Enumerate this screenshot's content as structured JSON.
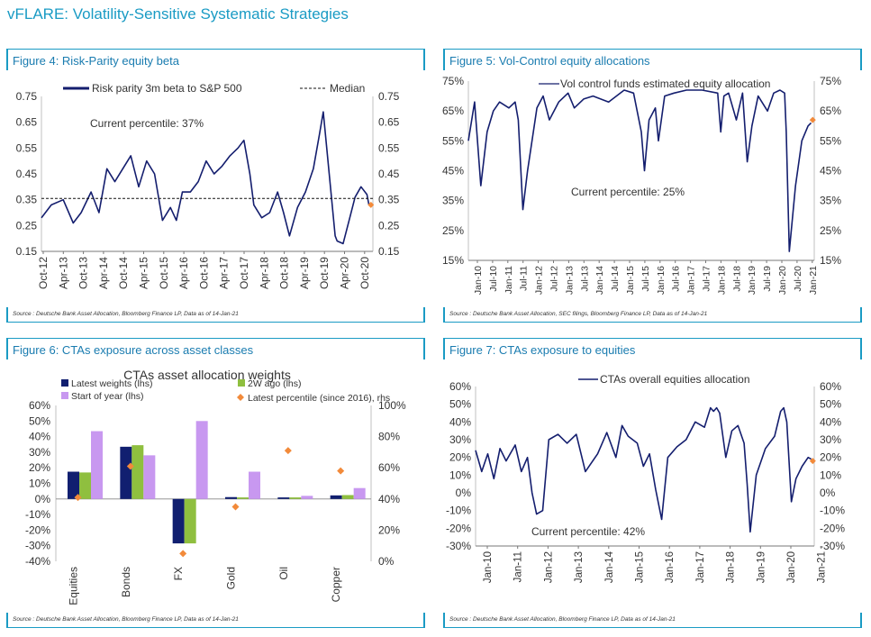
{
  "page": {
    "header": "vFLARE: Volatility-Sensitive Systematic Strategies"
  },
  "colors": {
    "accent": "#1a9bc4",
    "line": "#141e6e",
    "marker": "#f28a3a",
    "latest": "#111f70",
    "w2": "#8fbf3f",
    "soy": "#c898f0"
  },
  "figures": {
    "fig4": {
      "title": "Figure 4: Risk-Parity equity beta",
      "source": "Source : Deutsche Bank Asset Allocation, Bloomberg Finance LP, Data as of 14-Jan-21"
    },
    "fig5": {
      "title": "Figure 5: Vol-Control equity allocations",
      "source": "Source : Deutsche Bank Asset Allocation, SEC filings, Bloomberg Finance LP, Data as of 14-Jan-21"
    },
    "fig6": {
      "title": "Figure 6: CTAs exposure across asset classes",
      "source": "Source : Deutsche Bank Asset Allocation, Bloomberg Finance LP, Data as of 14-Jan-21"
    },
    "fig7": {
      "title": "Figure 7: CTAs exposure to equities",
      "source": "Source : Deutsche Bank Asset Allocation, Bloomberg Finance LP, Data as of 14-Jan-21"
    }
  },
  "chart_data": [
    {
      "id": "fig4",
      "type": "line",
      "series_name": "Risk parity 3m beta to S&P 500",
      "median_label": "Median",
      "median": 0.355,
      "annotation": "Current percentile: 37%",
      "ylim": [
        0.15,
        0.75
      ],
      "yticks": [
        "0.15",
        "0.25",
        "0.35",
        "0.45",
        "0.55",
        "0.65",
        "0.75"
      ],
      "xticks": [
        "Oct-12",
        "Apr-13",
        "Oct-13",
        "Apr-14",
        "Oct-14",
        "Apr-15",
        "Oct-15",
        "Apr-16",
        "Oct-16",
        "Apr-17",
        "Oct-17",
        "Apr-18",
        "Oct-18",
        "Apr-19",
        "Oct-19",
        "Apr-20",
        "Oct-20"
      ],
      "x": [
        2012.75,
        2013.0,
        2013.3,
        2013.55,
        2013.75,
        2014.0,
        2014.2,
        2014.4,
        2014.6,
        2014.8,
        2015.0,
        2015.2,
        2015.4,
        2015.6,
        2015.8,
        2016.0,
        2016.15,
        2016.3,
        2016.5,
        2016.7,
        2016.9,
        2017.1,
        2017.3,
        2017.5,
        2017.7,
        2017.85,
        2018.0,
        2018.1,
        2018.3,
        2018.5,
        2018.7,
        2018.85,
        2019.0,
        2019.2,
        2019.4,
        2019.6,
        2019.75,
        2019.85,
        2020.0,
        2020.15,
        2020.2,
        2020.35,
        2020.5,
        2020.65,
        2020.8,
        2020.95,
        2021.0
      ],
      "y": [
        0.28,
        0.33,
        0.35,
        0.26,
        0.3,
        0.38,
        0.3,
        0.47,
        0.42,
        0.47,
        0.52,
        0.4,
        0.5,
        0.45,
        0.27,
        0.32,
        0.27,
        0.38,
        0.38,
        0.42,
        0.5,
        0.45,
        0.48,
        0.52,
        0.55,
        0.58,
        0.45,
        0.33,
        0.28,
        0.3,
        0.38,
        0.3,
        0.21,
        0.32,
        0.38,
        0.47,
        0.6,
        0.69,
        0.45,
        0.21,
        0.19,
        0.18,
        0.27,
        0.36,
        0.4,
        0.37,
        0.33
      ],
      "marker": {
        "x": 2021.05,
        "y": 0.33
      }
    },
    {
      "id": "fig5",
      "type": "line",
      "series_name": "Vol control funds estimated equity allocation",
      "annotation": "Current percentile: 25%",
      "ylim": [
        15,
        75
      ],
      "yticks": [
        "15%",
        "25%",
        "35%",
        "45%",
        "55%",
        "65%",
        "75%"
      ],
      "xticks": [
        "Jan-10",
        "Jul-10",
        "Jan-11",
        "Jul-11",
        "Jan-12",
        "Jul-12",
        "Jan-13",
        "Jul-13",
        "Jan-14",
        "Jul-14",
        "Jan-15",
        "Jul-15",
        "Jan-16",
        "Jul-16",
        "Jan-17",
        "Jul-17",
        "Jan-18",
        "Jul-18",
        "Jan-19",
        "Jul-19",
        "Jan-20",
        "Jul-20",
        "Jan-21"
      ],
      "x": [
        2010.0,
        2010.2,
        2010.4,
        2010.6,
        2010.8,
        2011.0,
        2011.3,
        2011.5,
        2011.6,
        2011.75,
        2011.9,
        2012.2,
        2012.4,
        2012.6,
        2012.9,
        2013.2,
        2013.4,
        2013.7,
        2014.0,
        2014.5,
        2015.0,
        2015.3,
        2015.55,
        2015.65,
        2015.8,
        2016.0,
        2016.1,
        2016.3,
        2016.6,
        2017.0,
        2017.5,
        2018.0,
        2018.1,
        2018.2,
        2018.35,
        2018.6,
        2018.8,
        2018.95,
        2019.1,
        2019.3,
        2019.6,
        2019.8,
        2020.0,
        2020.15,
        2020.2,
        2020.3,
        2020.5,
        2020.7,
        2020.9,
        2021.0
      ],
      "y": [
        55,
        68,
        40,
        58,
        65,
        68,
        66,
        68,
        62,
        32,
        45,
        66,
        70,
        62,
        68,
        71,
        66,
        69,
        70,
        68,
        72,
        71,
        58,
        45,
        62,
        66,
        55,
        70,
        71,
        72,
        72,
        71,
        58,
        70,
        71,
        62,
        71,
        48,
        60,
        70,
        65,
        71,
        72,
        71,
        58,
        18,
        40,
        55,
        60,
        61
      ],
      "marker": {
        "x": 2021.05,
        "y": 62
      }
    },
    {
      "id": "fig6",
      "type": "bar",
      "title": "CTAs asset allocation weights",
      "legend": [
        "Latest weights (lhs)",
        "2W ago (lhs)",
        "Start of year (lhs)",
        "Latest percentile (since 2016), rhs"
      ],
      "categories": [
        "Equities",
        "Bonds",
        "FX",
        "Gold",
        "Oil",
        "Copper"
      ],
      "ylim": [
        -40,
        60
      ],
      "y2lim": [
        0,
        100
      ],
      "yticks": [
        "-40%",
        "-30%",
        "-20%",
        "-10%",
        "0%",
        "10%",
        "20%",
        "30%",
        "40%",
        "50%",
        "60%"
      ],
      "y2ticks": [
        "0%",
        "20%",
        "40%",
        "60%",
        "80%",
        "100%"
      ],
      "series": [
        {
          "name": "Latest weights (lhs)",
          "values": [
            17.5,
            33.5,
            -28.5,
            1.2,
            1.0,
            2.3
          ]
        },
        {
          "name": "2W ago (lhs)",
          "values": [
            17.0,
            34.5,
            -28.5,
            1.0,
            1.0,
            2.5
          ]
        },
        {
          "name": "Start of year (lhs)",
          "values": [
            43.5,
            28.0,
            50.0,
            17.5,
            2.0,
            7.0
          ]
        }
      ],
      "percentile": [
        41,
        61,
        5,
        35,
        71,
        58
      ]
    },
    {
      "id": "fig7",
      "type": "line",
      "series_name": "CTAs overall equities allocation",
      "annotation": "Current percentile: 42%",
      "ylim": [
        -30,
        60
      ],
      "yticks": [
        "-30%",
        "-20%",
        "-10%",
        "0%",
        "10%",
        "20%",
        "30%",
        "40%",
        "50%",
        "60%"
      ],
      "xticks": [
        "Jan-10",
        "Jan-11",
        "Jan-12",
        "Jan-13",
        "Jan-14",
        "Jan-15",
        "Jan-16",
        "Jan-17",
        "Jan-18",
        "Jan-19",
        "Jan-20",
        "Jan-21"
      ],
      "x": [
        2010.0,
        2010.2,
        2010.4,
        2010.6,
        2010.8,
        2011.0,
        2011.3,
        2011.5,
        2011.7,
        2011.85,
        2012.0,
        2012.2,
        2012.4,
        2012.7,
        2013.0,
        2013.3,
        2013.6,
        2014.0,
        2014.3,
        2014.6,
        2014.8,
        2015.0,
        2015.3,
        2015.5,
        2015.7,
        2015.9,
        2016.1,
        2016.3,
        2016.6,
        2016.9,
        2017.2,
        2017.5,
        2017.7,
        2017.8,
        2017.9,
        2018.0,
        2018.2,
        2018.4,
        2018.6,
        2018.8,
        2018.9,
        2019.0,
        2019.2,
        2019.5,
        2019.8,
        2020.0,
        2020.1,
        2020.2,
        2020.35,
        2020.5,
        2020.7,
        2020.9,
        2021.0
      ],
      "y": [
        24,
        12,
        22,
        8,
        25,
        18,
        27,
        12,
        20,
        0,
        -12,
        -10,
        30,
        33,
        28,
        33,
        12,
        22,
        34,
        20,
        38,
        32,
        28,
        15,
        22,
        2,
        -15,
        20,
        26,
        30,
        40,
        37,
        48,
        46,
        48,
        45,
        20,
        35,
        38,
        28,
        5,
        -22,
        10,
        25,
        32,
        46,
        48,
        40,
        -5,
        8,
        15,
        20,
        19
      ],
      "marker": {
        "x": 2021.05,
        "y": 18
      }
    }
  ]
}
